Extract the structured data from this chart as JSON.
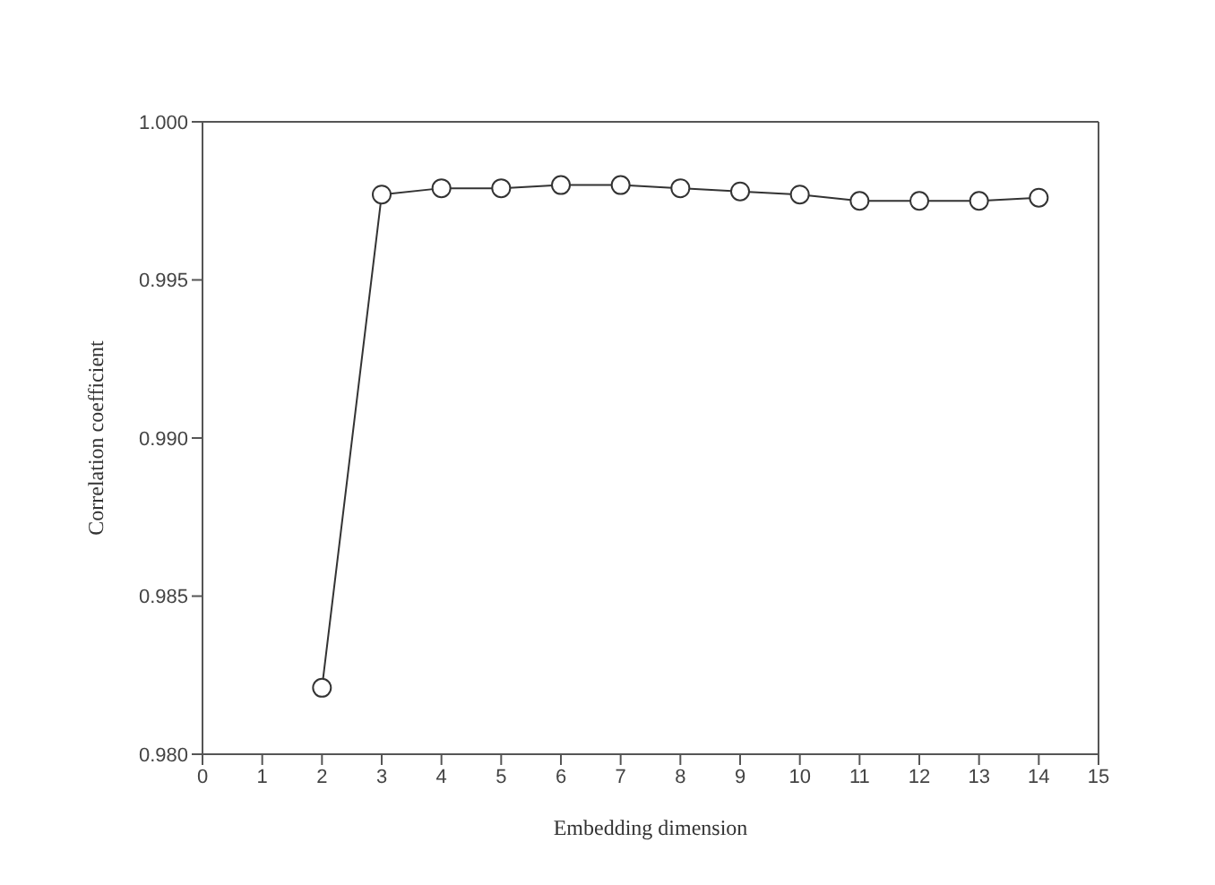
{
  "chart_data": {
    "type": "line",
    "xlabel": "Embedding dimension",
    "ylabel": "Correlation coefficient",
    "x": [
      2,
      3,
      4,
      5,
      6,
      7,
      8,
      9,
      10,
      11,
      12,
      13,
      14
    ],
    "series": [
      {
        "color": "#333333",
        "values": [
          0.9821,
          0.9977,
          0.9979,
          0.9979,
          0.998,
          0.998,
          0.9979,
          0.9978,
          0.9977,
          0.9975,
          0.9975,
          0.9975,
          0.9976
        ]
      }
    ],
    "xlim": [
      0,
      15
    ],
    "xticks": [
      0,
      1,
      2,
      3,
      4,
      5,
      6,
      7,
      8,
      9,
      10,
      11,
      12,
      13,
      14,
      15
    ],
    "ylim": [
      0.98,
      1
    ],
    "yticks": [
      {
        "value": 0.98,
        "label": "0.980"
      },
      {
        "value": 0.985,
        "label": "0.985"
      },
      {
        "value": 0.99,
        "label": "0.990"
      },
      {
        "value": 0.995,
        "label": "0.995"
      },
      {
        "value": 1,
        "label": "1.000"
      }
    ],
    "grid": false,
    "legend": false,
    "marker": "circle",
    "line_style": "solid"
  }
}
